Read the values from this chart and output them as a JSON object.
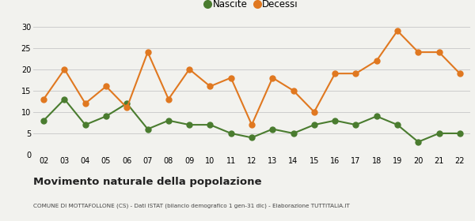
{
  "years": [
    "02",
    "03",
    "04",
    "05",
    "06",
    "07",
    "08",
    "09",
    "10",
    "11",
    "12",
    "13",
    "14",
    "15",
    "16",
    "17",
    "18",
    "19",
    "20",
    "21",
    "22"
  ],
  "nascite": [
    8,
    13,
    7,
    9,
    12,
    6,
    8,
    7,
    7,
    5,
    4,
    6,
    5,
    7,
    8,
    7,
    9,
    7,
    3,
    5,
    5
  ],
  "decessi": [
    13,
    20,
    12,
    16,
    11,
    24,
    13,
    20,
    16,
    18,
    7,
    18,
    15,
    10,
    19,
    19,
    22,
    29,
    24,
    24,
    19
  ],
  "nascite_color": "#4a7c2f",
  "decessi_color": "#e07820",
  "bg_color": "#f2f2ee",
  "grid_color": "#cccccc",
  "title": "Movimento naturale della popolazione",
  "subtitle": "COMUNE DI MOTTAFOLLONE (CS) - Dati ISTAT (bilancio demografico 1 gen-31 dic) - Elaborazione TUTTITALIA.IT",
  "ylim": [
    0,
    30
  ],
  "yticks": [
    0,
    5,
    10,
    15,
    20,
    25,
    30
  ],
  "legend_nascite": "Nascite",
  "legend_decessi": "Decessi",
  "marker_size": 5,
  "line_width": 1.5
}
